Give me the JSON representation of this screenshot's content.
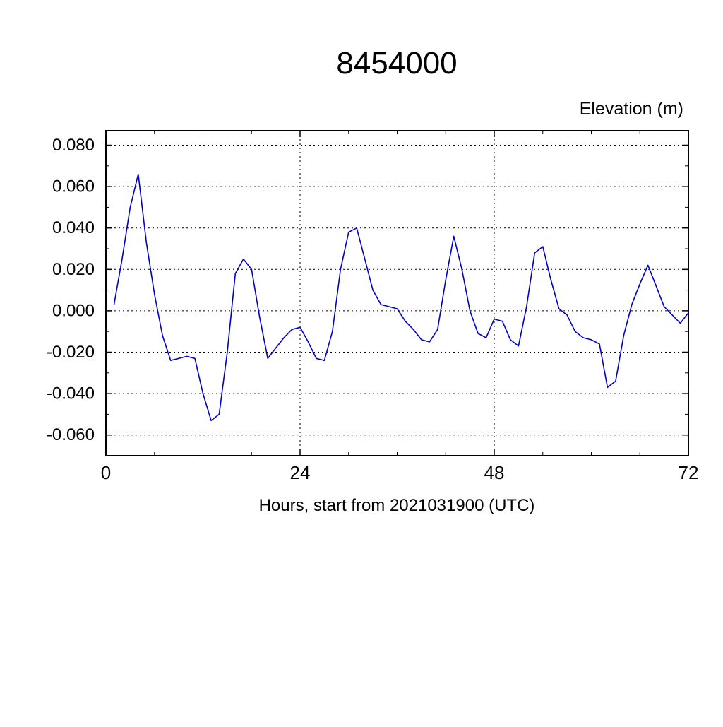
{
  "page": {
    "title": "8454000",
    "y_axis_title": "Elevation (m)",
    "x_axis_label": "Hours, start from 2021031900 (UTC)"
  },
  "chart_data": {
    "type": "line",
    "title": "8454000",
    "ylabel": "Elevation (m)",
    "xlabel": "Hours, start from 2021031900 (UTC)",
    "xlim": [
      0,
      72
    ],
    "ylim": [
      -0.07,
      0.087
    ],
    "x_ticks": [
      0,
      24,
      48,
      72
    ],
    "x_tick_labels": [
      "0",
      "24",
      "48",
      "72"
    ],
    "x_minor_step": 6,
    "x_gridlines": [
      24,
      48
    ],
    "y_ticks": [
      0.08,
      0.06,
      0.04,
      0.02,
      0.0,
      -0.02,
      -0.04,
      -0.06
    ],
    "y_tick_labels": [
      "0.080",
      "0.060",
      "0.040",
      "0.020",
      "0.000",
      "-0.020",
      "-0.040",
      "-0.060"
    ],
    "y_minor_step": 0.01,
    "grid": "dashed horizontal at every y tick; dashed vertical at x=24 and x=48",
    "legend": "none",
    "frame_color": "#000000",
    "grid_color": "#000000",
    "series": [
      {
        "name": "elevation",
        "color": "#0000cd",
        "x": [
          1,
          2,
          3,
          4,
          5,
          6,
          7,
          8,
          9,
          10,
          11,
          12,
          13,
          14,
          15,
          16,
          17,
          18,
          19,
          20,
          21,
          22,
          23,
          24,
          25,
          26,
          27,
          28,
          29,
          30,
          31,
          32,
          33,
          34,
          35,
          36,
          37,
          38,
          39,
          40,
          41,
          42,
          43,
          44,
          45,
          46,
          47,
          48,
          49,
          50,
          51,
          52,
          53,
          54,
          55,
          56,
          57,
          58,
          59,
          60,
          61,
          62,
          63,
          64,
          65,
          66,
          67,
          68,
          69,
          70,
          71,
          72
        ],
        "values": [
          0.003,
          0.025,
          0.05,
          0.066,
          0.033,
          0.008,
          -0.012,
          -0.024,
          -0.023,
          -0.022,
          -0.023,
          -0.04,
          -0.053,
          -0.05,
          -0.02,
          0.018,
          0.025,
          0.02,
          -0.003,
          -0.023,
          -0.018,
          -0.013,
          -0.009,
          -0.008,
          -0.015,
          -0.023,
          -0.024,
          -0.01,
          0.02,
          0.038,
          0.04,
          0.025,
          0.01,
          0.003,
          0.002,
          0.001,
          -0.005,
          -0.009,
          -0.014,
          -0.015,
          -0.009,
          0.015,
          0.036,
          0.02,
          0.0,
          -0.011,
          -0.013,
          -0.004,
          -0.005,
          -0.014,
          -0.017,
          0.002,
          0.028,
          0.031,
          0.015,
          0.001,
          -0.002,
          -0.01,
          -0.013,
          -0.014,
          -0.016,
          -0.037,
          -0.034,
          -0.012,
          0.003,
          0.013,
          0.022,
          0.012,
          0.002,
          -0.002,
          -0.006,
          -0.001
        ]
      }
    ]
  }
}
